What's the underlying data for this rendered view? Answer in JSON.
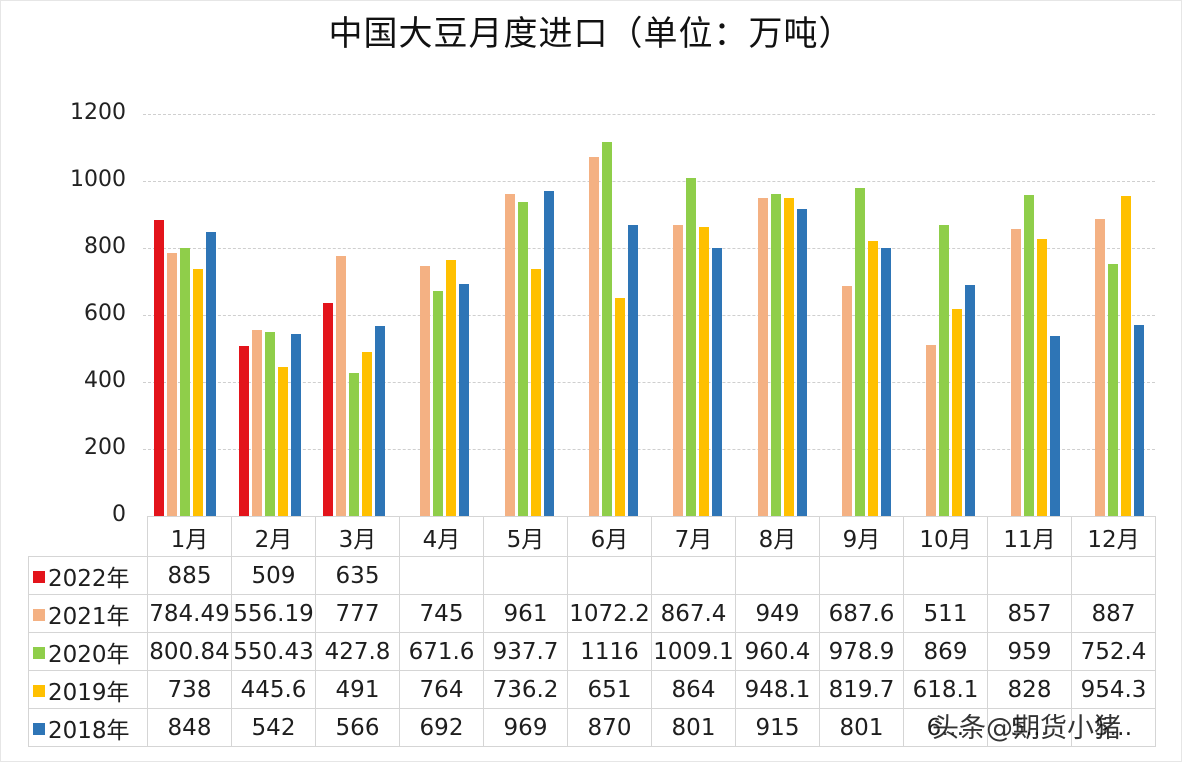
{
  "title": "中国大豆月度进口（单位：万吨）",
  "watermark": "头条@期货小猪",
  "chart_data": {
    "type": "bar",
    "title": "中国大豆月度进口（单位：万吨）",
    "xlabel": "",
    "ylabel": "",
    "unit": "万吨",
    "ylim": [
      0,
      1200
    ],
    "yticks": [
      0,
      200,
      400,
      600,
      800,
      1000,
      1200
    ],
    "grid": true,
    "legend_position": "data-table-left",
    "categories": [
      "1月",
      "2月",
      "3月",
      "4月",
      "5月",
      "6月",
      "7月",
      "8月",
      "9月",
      "10月",
      "11月",
      "12月"
    ],
    "series": [
      {
        "name": "2022年",
        "color": "#e3141b",
        "values": [
          885,
          509,
          635,
          null,
          null,
          null,
          null,
          null,
          null,
          null,
          null,
          null
        ]
      },
      {
        "name": "2021年",
        "color": "#f4b183",
        "values": [
          784.49,
          556.19,
          777,
          745,
          961,
          1072.2,
          867.4,
          949,
          687.6,
          511,
          857,
          887
        ]
      },
      {
        "name": "2020年",
        "color": "#8fce4a",
        "values": [
          800.84,
          550.43,
          427.8,
          671.6,
          937.7,
          1116,
          1009.1,
          960.4,
          978.9,
          869,
          959,
          752.4
        ]
      },
      {
        "name": "2019年",
        "color": "#ffc000",
        "values": [
          738,
          445.6,
          491,
          764,
          736.2,
          651,
          864,
          948.1,
          819.7,
          618.1,
          828,
          954.3
        ]
      },
      {
        "name": "2018年",
        "color": "#2e75b6",
        "values": [
          848,
          542,
          566,
          692,
          969,
          870,
          801,
          915,
          801,
          690,
          538,
          570
        ]
      }
    ],
    "table_display": {
      "2022年": [
        "885",
        "509",
        "635",
        "",
        "",
        "",
        "",
        "",
        "",
        "",
        "",
        ""
      ],
      "2021年": [
        "784.49",
        "556.19",
        "777",
        "745",
        "961",
        "1072.2",
        "867.4",
        "949",
        "687.6",
        "511",
        "857",
        "887"
      ],
      "2020年": [
        "800.84",
        "550.43",
        "427.8",
        "671.6",
        "937.7",
        "1116",
        "1009.1",
        "960.4",
        "978.9",
        "869",
        "959",
        "752.4"
      ],
      "2019年": [
        "738",
        "445.6",
        "491",
        "764",
        "736.2",
        "651",
        "864",
        "948.1",
        "819.7",
        "618.1",
        "828",
        "954.3"
      ],
      "2018年": [
        "848",
        "542",
        "566",
        "692",
        "969",
        "870",
        "801",
        "915",
        "801",
        "6…",
        "5…",
        "5…"
      ]
    }
  }
}
